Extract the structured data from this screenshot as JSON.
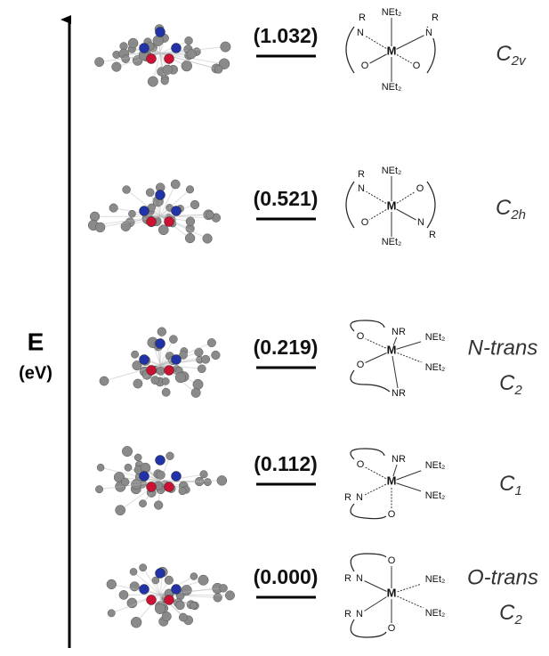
{
  "axis": {
    "label": "E",
    "unit": "(eV)"
  },
  "levels": [
    {
      "energy": "(1.032)",
      "symmetry": {
        "letter": "C",
        "sub": "2v"
      },
      "schematic": [
        "R",
        "N",
        "NEt₂",
        "R",
        "N",
        "M",
        "O",
        "O",
        "NEt₂"
      ]
    },
    {
      "energy": "(0.521)",
      "symmetry": {
        "letter": "C",
        "sub": "2h"
      },
      "schematic": [
        "R",
        "N",
        "NEt₂",
        "O",
        "M",
        "O",
        "N",
        "R",
        "NEt₂"
      ]
    },
    {
      "energy": "(0.219)",
      "symmetry": {
        "prefix": "N-trans",
        "letter": "C",
        "sub": "2"
      },
      "schematic": [
        "NR",
        "O",
        "NEt₂",
        "M",
        "O",
        "NEt₂",
        "NR"
      ]
    },
    {
      "energy": "(0.112)",
      "symmetry": {
        "letter": "C",
        "sub": "1"
      },
      "schematic": [
        "NR",
        "O",
        "NEt₂",
        "M",
        "R",
        "N",
        "NEt₂",
        "O"
      ]
    },
    {
      "energy": "(0.000)",
      "symmetry": {
        "prefix": "O-trans",
        "letter": "C",
        "sub": "2"
      },
      "schematic": [
        "O",
        "R",
        "N",
        "NEt₂",
        "M",
        "R",
        "N",
        "NEt₂",
        "O"
      ]
    }
  ]
}
